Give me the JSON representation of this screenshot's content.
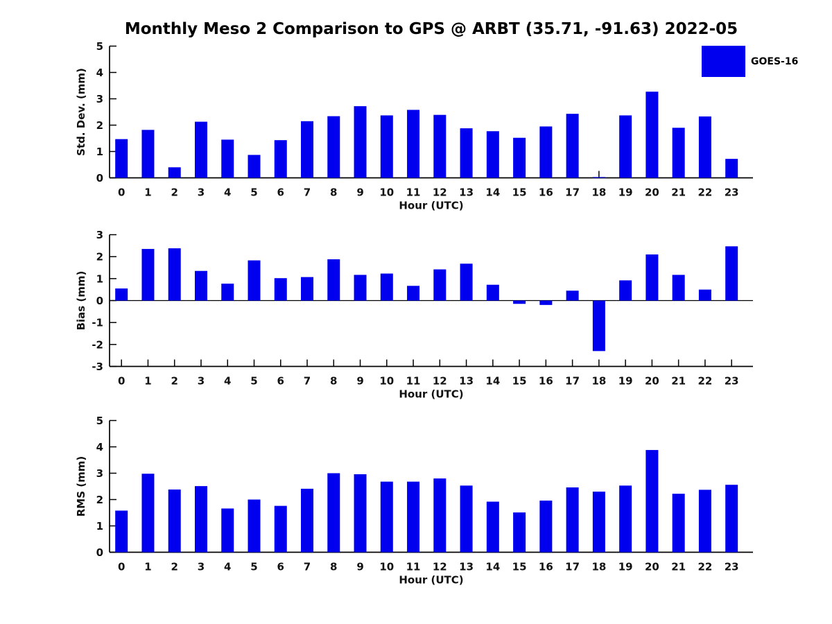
{
  "title": "Monthly Meso 2 Comparison to GPS @ ARBT (35.71, -91.63) 2022-05",
  "legend": {
    "label": "GOES-16",
    "color": "#0000EE",
    "position": "top-right"
  },
  "colors": {
    "bar": "#0000EE",
    "axis": "#000000",
    "text": "#111111"
  },
  "chart_data": [
    {
      "id": "std-dev",
      "type": "bar",
      "title": "",
      "xlabel": "Hour (UTC)",
      "ylabel": "Std. Dev. (mm)",
      "ylim": [
        0,
        5
      ],
      "yticks": [
        0,
        1,
        2,
        3,
        4,
        5
      ],
      "grid": false,
      "legend_entry": "GOES-16",
      "categories": [
        "0",
        "1",
        "2",
        "3",
        "4",
        "5",
        "6",
        "7",
        "8",
        "9",
        "10",
        "11",
        "12",
        "13",
        "14",
        "15",
        "16",
        "17",
        "18",
        "19",
        "20",
        "21",
        "22",
        "23"
      ],
      "values": [
        1.47,
        1.82,
        0.4,
        2.13,
        1.45,
        0.87,
        1.43,
        2.15,
        2.34,
        2.72,
        2.37,
        2.58,
        2.39,
        1.88,
        1.77,
        1.52,
        1.95,
        2.43,
        0.03,
        2.37,
        3.27,
        1.9,
        2.33,
        0.72
      ]
    },
    {
      "id": "bias",
      "type": "bar",
      "title": "",
      "xlabel": "Hour (UTC)",
      "ylabel": "Bias (mm)",
      "ylim": [
        -3,
        3
      ],
      "yticks": [
        -3,
        -2,
        -1,
        0,
        1,
        2,
        3
      ],
      "grid": false,
      "legend_entry": "GOES-16",
      "categories": [
        "0",
        "1",
        "2",
        "3",
        "4",
        "5",
        "6",
        "7",
        "8",
        "9",
        "10",
        "11",
        "12",
        "13",
        "14",
        "15",
        "16",
        "17",
        "18",
        "19",
        "20",
        "21",
        "22",
        "23"
      ],
      "values": [
        0.55,
        2.35,
        2.38,
        1.35,
        0.77,
        1.83,
        1.02,
        1.07,
        1.88,
        1.17,
        1.23,
        0.67,
        1.42,
        1.68,
        0.72,
        -0.15,
        -0.2,
        0.45,
        -2.3,
        0.92,
        2.1,
        1.17,
        0.5,
        2.47
      ]
    },
    {
      "id": "rms",
      "type": "bar",
      "title": "",
      "xlabel": "Hour (UTC)",
      "ylabel": "RMS (mm)",
      "ylim": [
        0,
        5
      ],
      "yticks": [
        0,
        1,
        2,
        3,
        4,
        5
      ],
      "grid": false,
      "legend_entry": "GOES-16",
      "categories": [
        "0",
        "1",
        "2",
        "3",
        "4",
        "5",
        "6",
        "7",
        "8",
        "9",
        "10",
        "11",
        "12",
        "13",
        "14",
        "15",
        "16",
        "17",
        "18",
        "19",
        "20",
        "21",
        "22",
        "23"
      ],
      "values": [
        1.58,
        2.98,
        2.38,
        2.51,
        1.66,
        2.0,
        1.76,
        2.41,
        3.0,
        2.96,
        2.68,
        2.68,
        2.8,
        2.53,
        1.92,
        1.51,
        1.96,
        2.46,
        2.3,
        2.53,
        3.88,
        2.22,
        2.37,
        2.56
      ]
    }
  ]
}
